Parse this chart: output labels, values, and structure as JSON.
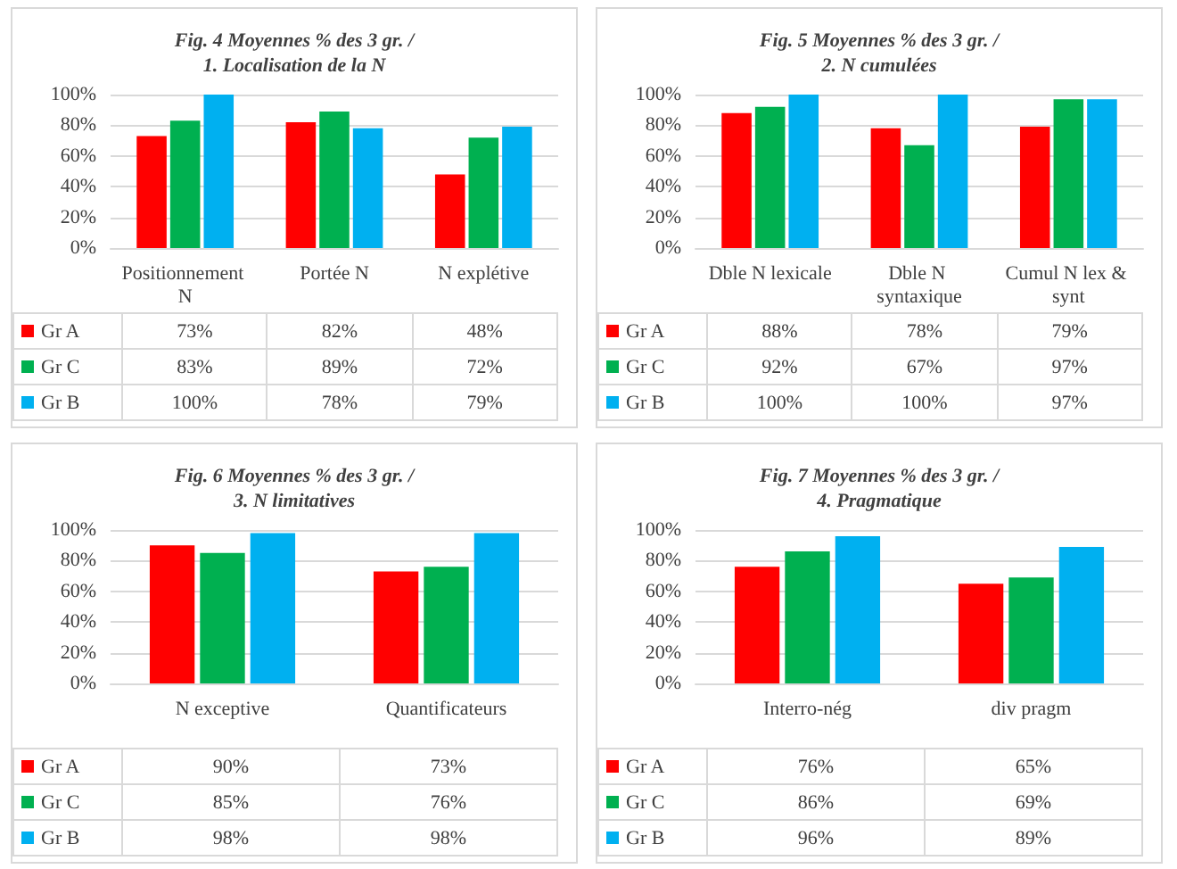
{
  "chart_data": [
    {
      "type": "bar",
      "title": "Fig. 4 Moyennes % des 3 gr. /\n1. Localisation de la N",
      "categories": [
        "Positionnement N",
        "Portée N",
        "N explétive"
      ],
      "series": [
        {
          "name": "Gr A",
          "color": "#ff0000",
          "values": [
            73,
            82,
            48
          ],
          "value_labels": [
            "73%",
            "82%",
            "48%"
          ]
        },
        {
          "name": "Gr C",
          "color": "#00b050",
          "values": [
            83,
            89,
            72
          ],
          "value_labels": [
            "83%",
            "89%",
            "72%"
          ]
        },
        {
          "name": "Gr B",
          "color": "#00b0f0",
          "values": [
            100,
            78,
            79
          ],
          "value_labels": [
            "100%",
            "78%",
            "79%"
          ]
        }
      ],
      "ylim": [
        0,
        100
      ],
      "yticks": [
        {
          "value": 0,
          "label": "0%"
        },
        {
          "value": 20,
          "label": "20%"
        },
        {
          "value": 40,
          "label": "40%"
        },
        {
          "value": 60,
          "label": "60%"
        },
        {
          "value": 80,
          "label": "80%"
        },
        {
          "value": 100,
          "label": "100%"
        }
      ],
      "grid": "y",
      "legend": "bottom"
    },
    {
      "type": "bar",
      "title": "Fig. 5 Moyennes % des 3 gr. /\n2. N cumulées",
      "categories": [
        "Dble N lexicale",
        "Dble N syntaxique",
        "Cumul N lex & synt"
      ],
      "series": [
        {
          "name": "Gr A",
          "color": "#ff0000",
          "values": [
            88,
            78,
            79
          ],
          "value_labels": [
            "88%",
            "78%",
            "79%"
          ]
        },
        {
          "name": "Gr C",
          "color": "#00b050",
          "values": [
            92,
            67,
            97
          ],
          "value_labels": [
            "92%",
            "67%",
            "97%"
          ]
        },
        {
          "name": "Gr B",
          "color": "#00b0f0",
          "values": [
            100,
            100,
            97
          ],
          "value_labels": [
            "100%",
            "100%",
            "97%"
          ]
        }
      ],
      "ylim": [
        0,
        100
      ],
      "yticks": [
        {
          "value": 0,
          "label": "0%"
        },
        {
          "value": 20,
          "label": "20%"
        },
        {
          "value": 40,
          "label": "40%"
        },
        {
          "value": 60,
          "label": "60%"
        },
        {
          "value": 80,
          "label": "80%"
        },
        {
          "value": 100,
          "label": "100%"
        }
      ],
      "grid": "y",
      "legend": "bottom"
    },
    {
      "type": "bar",
      "title": "Fig. 6 Moyennes % des 3 gr. /\n3. N limitatives",
      "categories": [
        "N exceptive",
        "Quantificateurs"
      ],
      "series": [
        {
          "name": "Gr A",
          "color": "#ff0000",
          "values": [
            90,
            73
          ],
          "value_labels": [
            "90%",
            "73%"
          ]
        },
        {
          "name": "Gr C",
          "color": "#00b050",
          "values": [
            85,
            76
          ],
          "value_labels": [
            "85%",
            "76%"
          ]
        },
        {
          "name": "Gr B",
          "color": "#00b0f0",
          "values": [
            98,
            98
          ],
          "value_labels": [
            "98%",
            "98%"
          ]
        }
      ],
      "ylim": [
        0,
        100
      ],
      "yticks": [
        {
          "value": 0,
          "label": "0%"
        },
        {
          "value": 20,
          "label": "20%"
        },
        {
          "value": 40,
          "label": "40%"
        },
        {
          "value": 60,
          "label": "60%"
        },
        {
          "value": 80,
          "label": "80%"
        },
        {
          "value": 100,
          "label": "100%"
        }
      ],
      "grid": "y",
      "legend": "bottom"
    },
    {
      "type": "bar",
      "title": "Fig. 7 Moyennes % des 3 gr. /\n4. Pragmatique",
      "categories": [
        "Interro-nég",
        "div pragm"
      ],
      "series": [
        {
          "name": "Gr A",
          "color": "#ff0000",
          "values": [
            76,
            65
          ],
          "value_labels": [
            "76%",
            "65%"
          ]
        },
        {
          "name": "Gr C",
          "color": "#00b050",
          "values": [
            86,
            69
          ],
          "value_labels": [
            "86%",
            "69%"
          ]
        },
        {
          "name": "Gr B",
          "color": "#00b0f0",
          "values": [
            96,
            89
          ],
          "value_labels": [
            "96%",
            "89%"
          ]
        }
      ],
      "ylim": [
        0,
        100
      ],
      "yticks": [
        {
          "value": 0,
          "label": "0%"
        },
        {
          "value": 20,
          "label": "20%"
        },
        {
          "value": 40,
          "label": "40%"
        },
        {
          "value": 60,
          "label": "60%"
        },
        {
          "value": 80,
          "label": "80%"
        },
        {
          "value": 100,
          "label": "100%"
        }
      ],
      "grid": "y",
      "legend": "bottom"
    }
  ]
}
